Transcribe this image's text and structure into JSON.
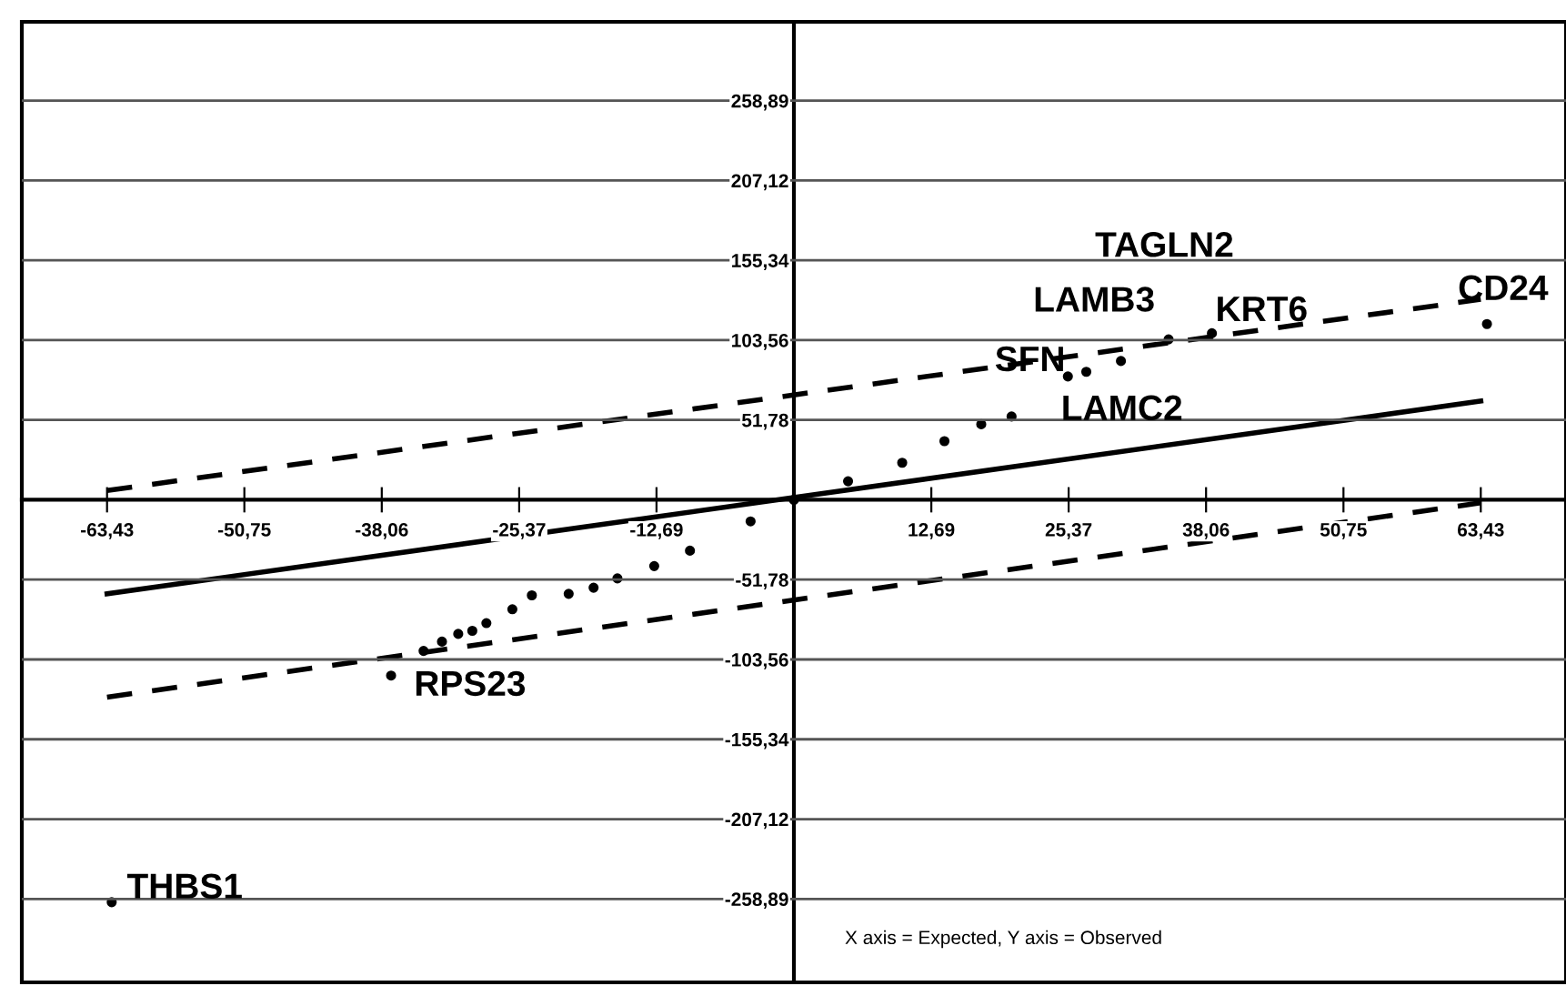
{
  "chart_data": {
    "type": "scatter",
    "xlim": [
      -71.3,
      71.3
    ],
    "ylim": [
      -313,
      310
    ],
    "xticks": [
      {
        "value": -63.43,
        "label": "-63,43"
      },
      {
        "value": -50.75,
        "label": "-50,75"
      },
      {
        "value": -38.06,
        "label": "-38,06"
      },
      {
        "value": -25.37,
        "label": "-25,37"
      },
      {
        "value": -12.69,
        "label": "-12,69"
      },
      {
        "value": 12.69,
        "label": "12,69"
      },
      {
        "value": 25.37,
        "label": "25,37"
      },
      {
        "value": 38.06,
        "label": "38,06"
      },
      {
        "value": 50.75,
        "label": "50,75"
      },
      {
        "value": 63.43,
        "label": "63,43"
      }
    ],
    "yticks": [
      {
        "value": -258.89,
        "label": "-258,89"
      },
      {
        "value": -207.12,
        "label": "-207,12"
      },
      {
        "value": -155.34,
        "label": "-155,34"
      },
      {
        "value": -103.56,
        "label": "-103,56"
      },
      {
        "value": -51.78,
        "label": "-51,78"
      },
      {
        "value": 51.78,
        "label": "51,78"
      },
      {
        "value": 103.56,
        "label": "103,56"
      },
      {
        "value": 155.34,
        "label": "155,34"
      },
      {
        "value": 207.12,
        "label": "207,12"
      },
      {
        "value": 258.89,
        "label": "258,89"
      }
    ],
    "grid": "y",
    "series": [
      {
        "type": "line",
        "color": "#000000",
        "line_style": "solid",
        "x": [
          -63.43,
          63.43
        ],
        "values": [
          -61,
          64
        ]
      },
      {
        "type": "line",
        "color": "#000000",
        "line_style": "dashed",
        "x": [
          -63.43,
          63.43
        ],
        "values": [
          6,
          130
        ]
      },
      {
        "type": "line",
        "color": "#000000",
        "line_style": "dashed",
        "x": [
          -63.43,
          63.43
        ],
        "values": [
          -128,
          -2
        ]
      },
      {
        "color": "#000000",
        "marker": "circle",
        "x": [
          -63.0,
          -37.2,
          -34.2,
          -32.5,
          -31,
          -29.7,
          -28.4,
          -26,
          -24.2,
          -20.8,
          -18.5,
          -16.3,
          -12.9,
          -9.6,
          -4,
          0,
          5,
          10,
          13.9,
          17.3,
          20.1,
          25.3,
          27,
          30.2,
          34.6,
          38.6,
          64
        ],
        "values": [
          -261,
          -114,
          -98,
          -92,
          -87,
          -85,
          -80,
          -71,
          -62,
          -61,
          -57,
          -51,
          -43,
          -33,
          -14,
          0,
          12,
          24,
          38,
          49,
          54,
          80,
          83,
          90,
          104,
          108,
          114
        ]
      }
    ],
    "annotations": [
      "TAGLN2",
      "LAMB3",
      "KRT6",
      "SFN",
      "LAMC2",
      "CD24",
      "RPS23",
      "THBS1",
      "X axis = Expected, Y axis = Observed"
    ]
  }
}
